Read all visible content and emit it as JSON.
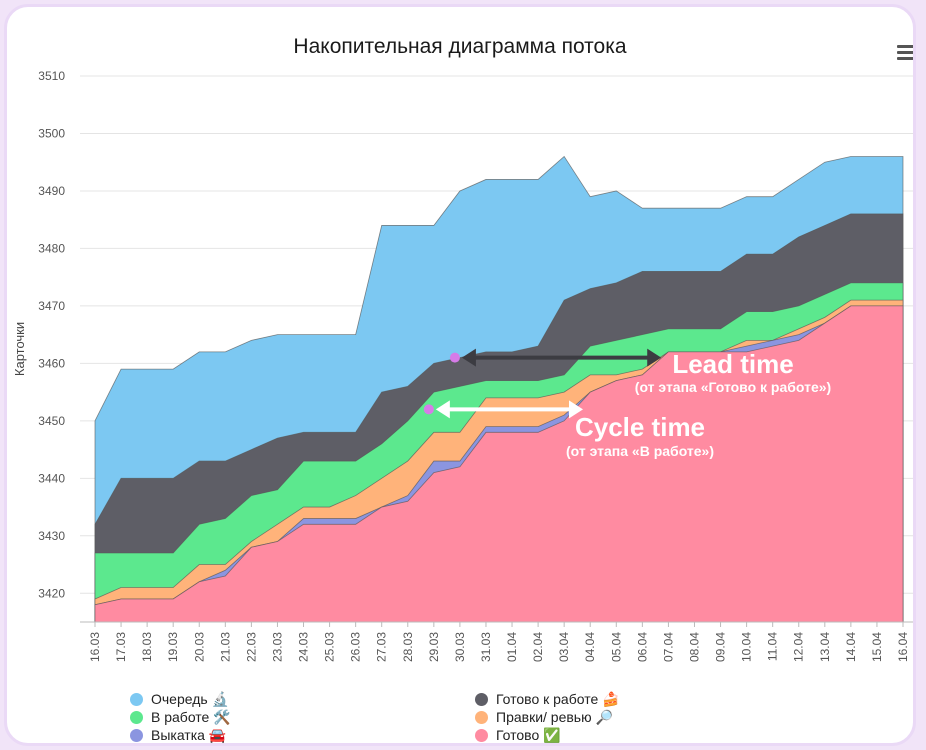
{
  "chart_data": {
    "type": "area",
    "title": "Накопительная диаграмма потока",
    "ylabel": "Карточки",
    "ylim": [
      3415,
      3510
    ],
    "yticks": [
      3420,
      3430,
      3440,
      3450,
      3460,
      3470,
      3480,
      3490,
      3500,
      3510
    ],
    "categories": [
      "16.03",
      "17.03",
      "18.03",
      "19.03",
      "20.03",
      "21.03",
      "22.03",
      "23.03",
      "24.03",
      "25.03",
      "26.03",
      "27.03",
      "28.03",
      "29.03",
      "30.03",
      "31.03",
      "01.04",
      "02.04",
      "03.04",
      "04.04",
      "05.04",
      "06.04",
      "07.04",
      "08.04",
      "09.04",
      "10.04",
      "11.04",
      "12.04",
      "13.04",
      "14.04",
      "15.04",
      "16.04"
    ],
    "stacked_totals": true,
    "series": [
      {
        "name": "Готово ✅",
        "color": "#ff8ba1",
        "values": [
          3418,
          3419,
          3419,
          3419,
          3422,
          3423,
          3428,
          3429,
          3432,
          3432,
          3432,
          3435,
          3436,
          3441,
          3442,
          3448,
          3448,
          3448,
          3450,
          3455,
          3457,
          3458,
          3462,
          3462,
          3462,
          3462,
          3463,
          3464,
          3467,
          3470,
          3470,
          3470
        ]
      },
      {
        "name": "Выкатка 🚘",
        "color": "#8b95e0",
        "values": [
          3418,
          3419,
          3419,
          3419,
          3422,
          3424,
          3428,
          3429,
          3433,
          3433,
          3433,
          3435,
          3437,
          3443,
          3443,
          3449,
          3449,
          3449,
          3451,
          3455,
          3457,
          3458,
          3462,
          3462,
          3462,
          3463,
          3464,
          3465,
          3467,
          3470,
          3470,
          3470
        ]
      },
      {
        "name": "Правки/ ревью 🔎",
        "color": "#ffb37a",
        "values": [
          3419,
          3421,
          3421,
          3421,
          3425,
          3425,
          3429,
          3432,
          3435,
          3435,
          3437,
          3440,
          3443,
          3448,
          3448,
          3454,
          3454,
          3454,
          3455,
          3458,
          3458,
          3459,
          3462,
          3462,
          3462,
          3464,
          3464,
          3466,
          3468,
          3471,
          3471,
          3471
        ]
      },
      {
        "name": "В работе 🛠️",
        "color": "#5ce88e",
        "values": [
          3427,
          3427,
          3427,
          3427,
          3432,
          3433,
          3437,
          3438,
          3443,
          3443,
          3443,
          3446,
          3450,
          3455,
          3456,
          3457,
          3457,
          3457,
          3458,
          3463,
          3464,
          3465,
          3466,
          3466,
          3466,
          3469,
          3469,
          3470,
          3472,
          3474,
          3474,
          3474
        ]
      },
      {
        "name": "Готово к работе 🍰",
        "color": "#5e5e66",
        "values": [
          3432,
          3440,
          3440,
          3440,
          3443,
          3443,
          3445,
          3447,
          3448,
          3448,
          3448,
          3455,
          3456,
          3460,
          3461,
          3462,
          3462,
          3463,
          3471,
          3473,
          3474,
          3476,
          3476,
          3476,
          3476,
          3479,
          3479,
          3482,
          3484,
          3486,
          3486,
          3486
        ]
      },
      {
        "name": "Очередь 🔬",
        "color": "#7cc8f2",
        "values": [
          3450,
          3459,
          3459,
          3459,
          3462,
          3462,
          3464,
          3465,
          3465,
          3465,
          3465,
          3484,
          3484,
          3484,
          3490,
          3492,
          3492,
          3492,
          3496,
          3489,
          3490,
          3487,
          3487,
          3487,
          3487,
          3489,
          3489,
          3492,
          3495,
          3496,
          3496,
          3496
        ]
      }
    ],
    "annotations": {
      "lead": {
        "from_index": 14,
        "to_index": 21.8,
        "value": 3461,
        "label": "Lead time",
        "sublabel": "(от этапа «Готово к работе»)"
      },
      "cycle": {
        "from_index": 13,
        "to_index": 18.8,
        "value": 3452,
        "label": "Cycle time",
        "sublabel": "(от этапа «В работе»)"
      }
    }
  },
  "legend": {
    "queue": "Очередь 🔬",
    "ready": "Готово к работе 🍰",
    "inwork": "В работе 🛠️",
    "review": "Правки/ ревью 🔎",
    "deploy": "Выкатка 🚘",
    "done": "Готово ✅"
  },
  "colors": {
    "queue": "#7cc8f2",
    "ready": "#5e5e66",
    "inwork": "#5ce88e",
    "review": "#ffb37a",
    "deploy": "#8b95e0",
    "done": "#ff8ba1",
    "marker": "#d67be8"
  },
  "icons": {
    "menu": "hamburger-menu-icon"
  }
}
